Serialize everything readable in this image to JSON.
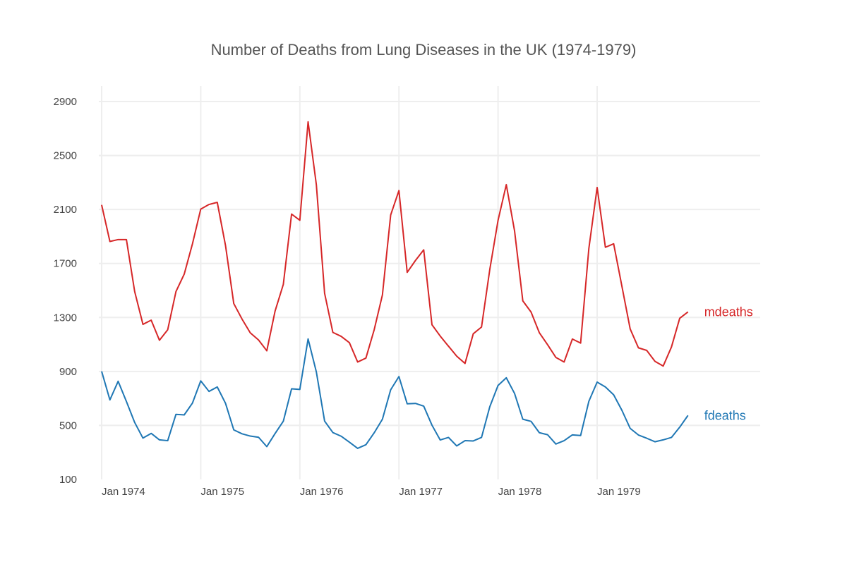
{
  "chart_data": {
    "type": "line",
    "title": "Number of Deaths from Lung Diseases in the UK (1974-1979)",
    "xlabel": "",
    "ylabel": "",
    "ylim": [
      100,
      2950
    ],
    "yticks": [
      100,
      500,
      900,
      1300,
      1700,
      2100,
      2500,
      2900
    ],
    "xtick_labels": [
      "Jan 1974",
      "Jan 1975",
      "Jan 1976",
      "Jan 1977",
      "Jan 1978",
      "Jan 1979"
    ],
    "x_start": "Jan 1974",
    "x_frequency": "monthly",
    "grid": true,
    "legend": "labels at right end of each line",
    "series": [
      {
        "name": "mdeaths",
        "color": "#d62728",
        "values": [
          2134,
          1863,
          1877,
          1877,
          1492,
          1249,
          1280,
          1131,
          1209,
          1492,
          1621,
          1846,
          2103,
          2137,
          2153,
          1833,
          1403,
          1288,
          1186,
          1133,
          1053,
          1347,
          1545,
          2066,
          2020,
          2750,
          2283,
          1479,
          1189,
          1160,
          1113,
          970,
          999,
          1208,
          1467,
          2059,
          2240,
          1634,
          1722,
          1801,
          1246,
          1162,
          1087,
          1013,
          959,
          1179,
          1229,
          1655,
          2019,
          2284,
          1942,
          1423,
          1340,
          1187,
          1098,
          1004,
          970,
          1140,
          1110,
          1812,
          2263,
          1820,
          1846,
          1531,
          1215,
          1075,
          1056,
          975,
          940,
          1081,
          1294,
          1341
        ]
      },
      {
        "name": "fdeaths",
        "color": "#1f77b4",
        "values": [
          901,
          689,
          827,
          677,
          522,
          406,
          441,
          393,
          387,
          582,
          578,
          666,
          830,
          752,
          785,
          664,
          467,
          438,
          421,
          412,
          343,
          440,
          531,
          771,
          767,
          1141,
          896,
          532,
          447,
          420,
          376,
          330,
          357,
          445,
          546,
          764,
          862,
          660,
          663,
          643,
          502,
          392,
          411,
          348,
          387,
          385,
          411,
          638,
          796,
          853,
          737,
          546,
          530,
          446,
          431,
          362,
          387,
          430,
          425,
          679,
          821,
          785,
          727,
          612,
          478,
          429,
          405,
          379,
          393,
          411,
          487,
          574
        ]
      }
    ]
  }
}
